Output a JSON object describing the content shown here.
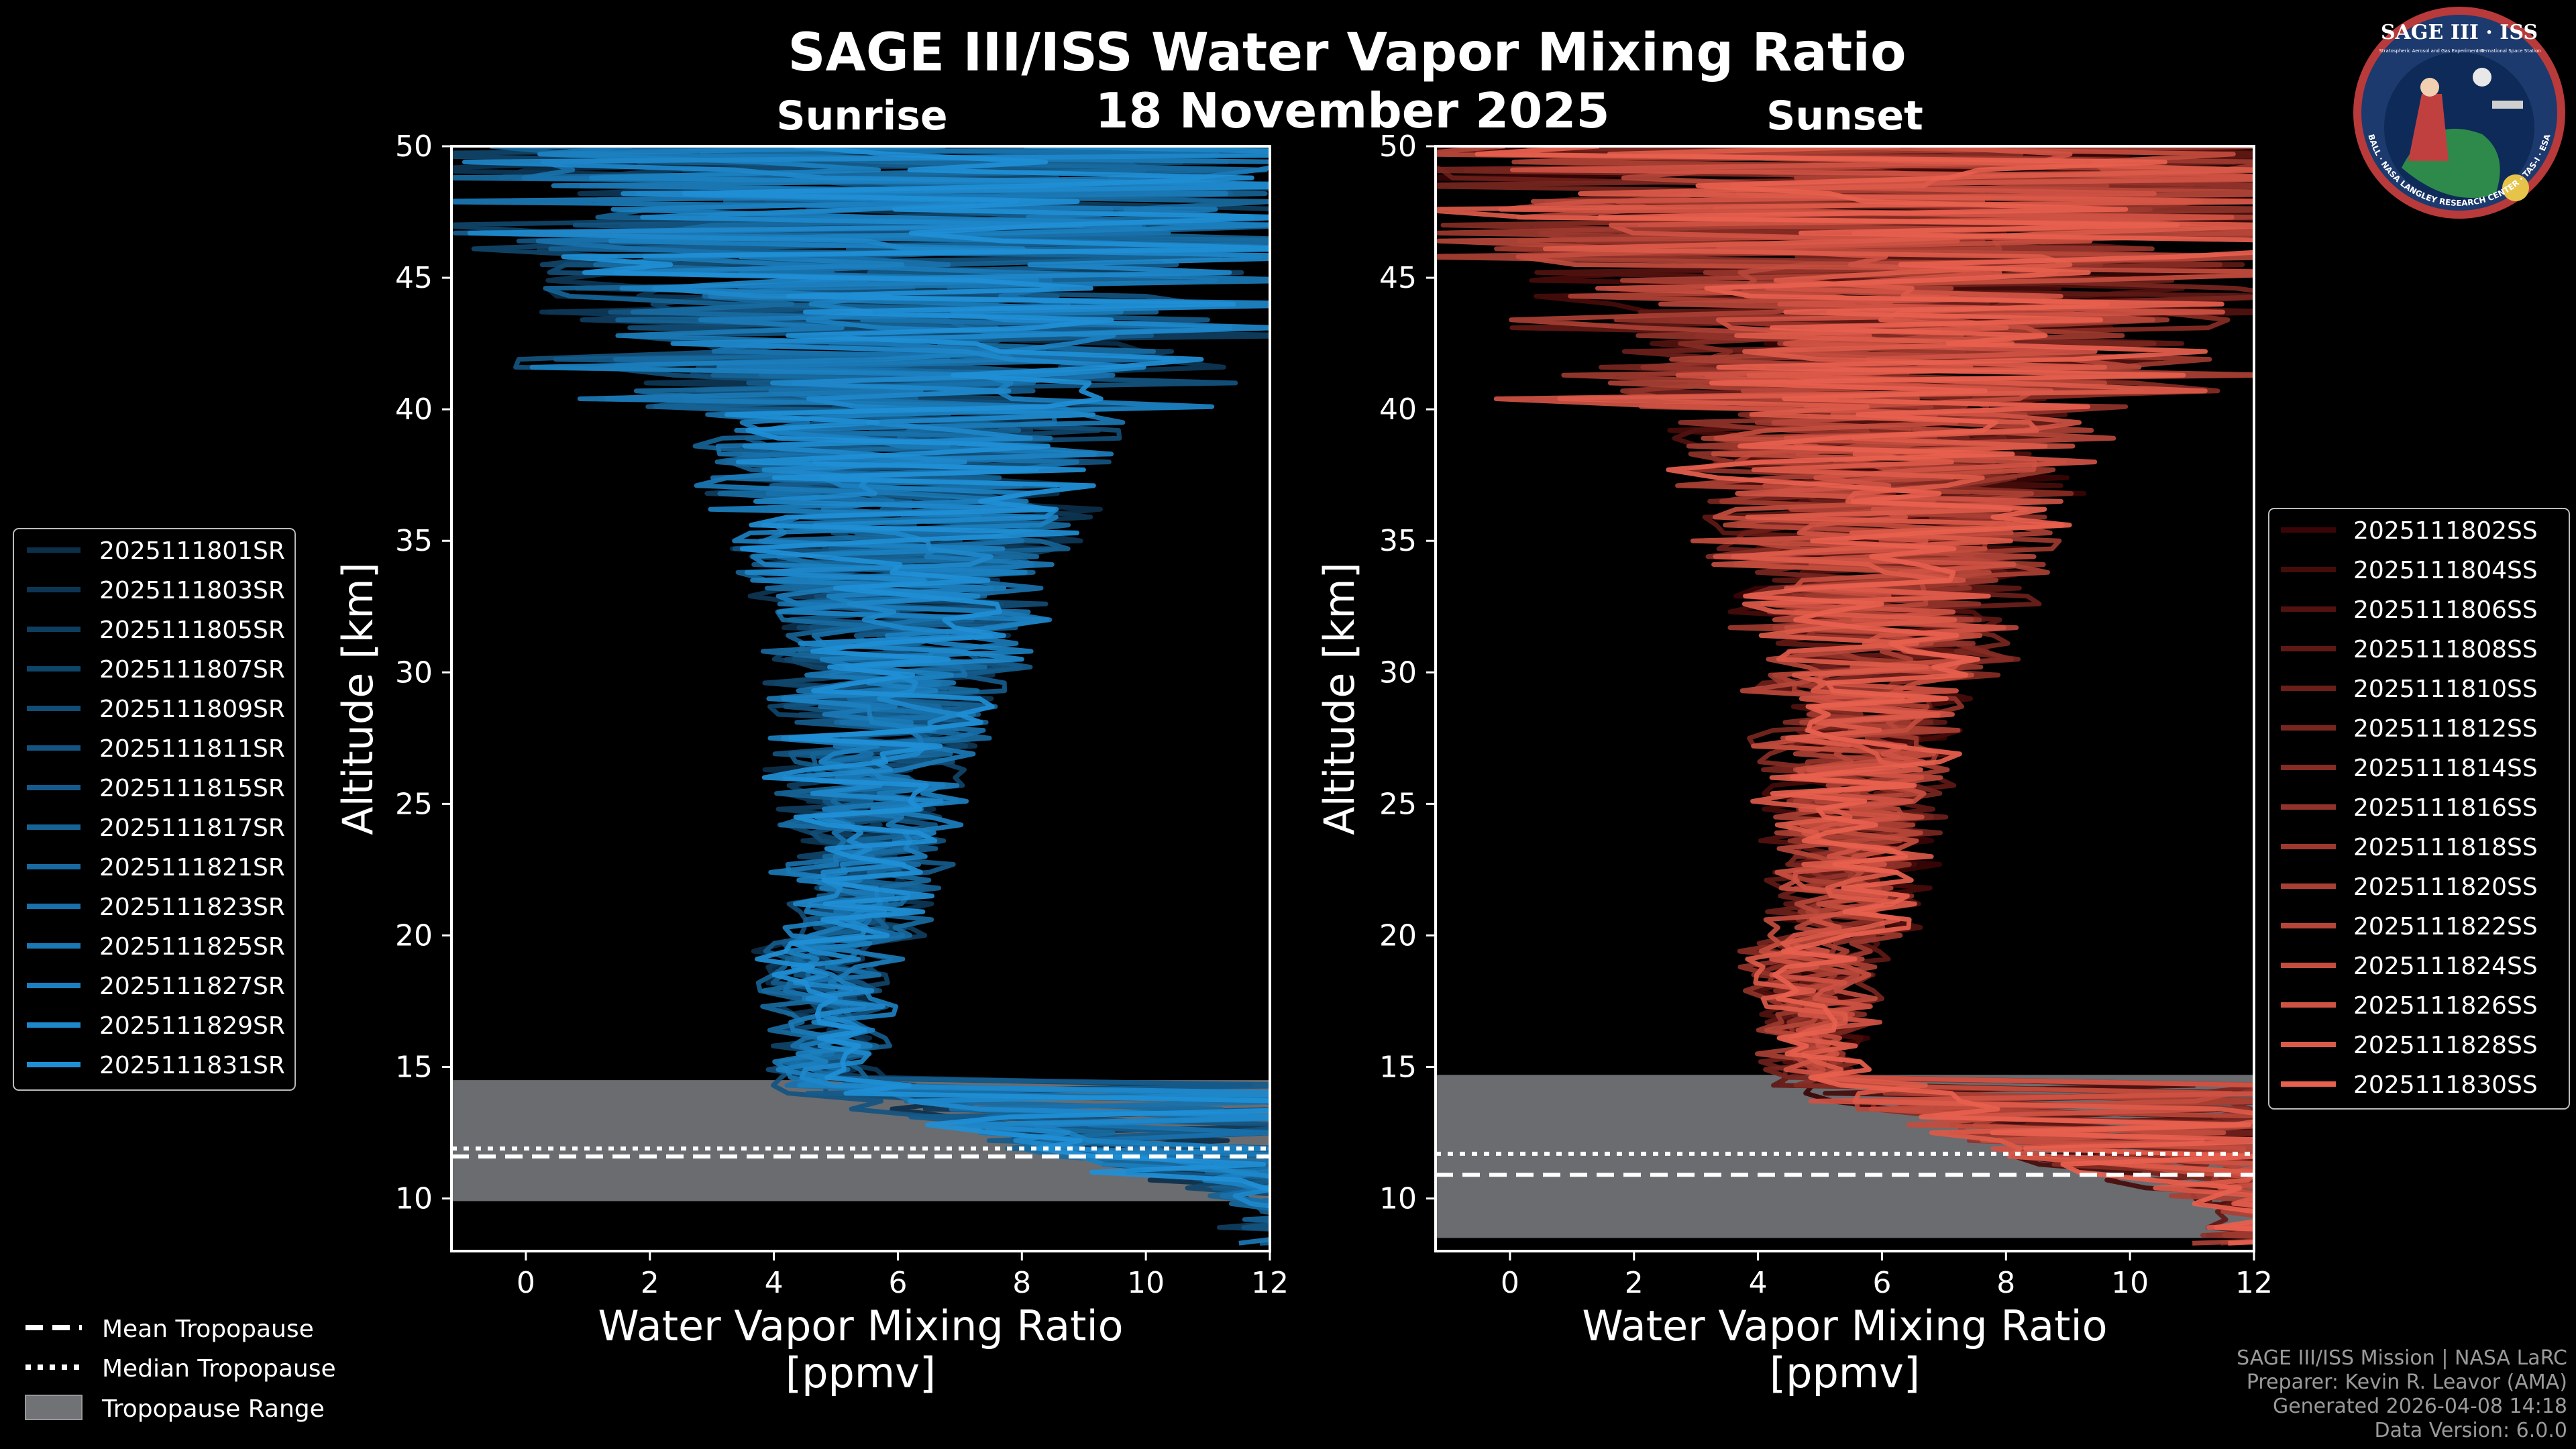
{
  "title": "SAGE III/ISS Water Vapor Mixing Ratio",
  "date": "18 November 2025",
  "logo": {
    "top_text": "SAGE III · ISS",
    "sub_text_left": "Stratospheric Aerosol and Gas Experiment III",
    "sub_text_right": "International Space Station",
    "ring_text": "BALL · NASA LANGLEY RESEARCH CENTER · TAS-I · ESA"
  },
  "legend_common": [
    {
      "label": "Mean Tropopause",
      "style": "dashed"
    },
    {
      "label": "Median Tropopause",
      "style": "dotted"
    },
    {
      "label": "Tropopause Range",
      "style": "patch"
    }
  ],
  "footer": [
    "SAGE III/ISS Mission | NASA LaRC",
    "Preparer: Kevin R. Leavor (AMA)",
    "Generated 2026-04-08 14:18",
    "Data Version: 6.0.0"
  ],
  "colors": {
    "sunrise": "#1f8fd6",
    "sunset": "#e8604e",
    "range": "#707276"
  },
  "chart_data": [
    {
      "type": "line",
      "panel": "sunrise",
      "subtitle": "Sunrise",
      "xlabel": "Water Vapor Mixing Ratio\n[ppmv]",
      "ylabel": "Altitude [km]",
      "xlim": [
        -1.2,
        12
      ],
      "ylim": [
        8,
        50
      ],
      "xticks": [
        0,
        2,
        4,
        6,
        8,
        10,
        12
      ],
      "yticks": [
        10,
        15,
        20,
        25,
        30,
        35,
        40,
        45,
        50
      ],
      "tropopause_range": [
        9.9,
        14.5
      ],
      "tropopause_mean": 11.6,
      "tropopause_median": 11.9,
      "series": [
        {
          "name": "2025111801SR"
        },
        {
          "name": "2025111803SR"
        },
        {
          "name": "2025111805SR"
        },
        {
          "name": "2025111807SR"
        },
        {
          "name": "2025111809SR"
        },
        {
          "name": "2025111811SR"
        },
        {
          "name": "2025111815SR"
        },
        {
          "name": "2025111817SR"
        },
        {
          "name": "2025111821SR"
        },
        {
          "name": "2025111823SR"
        },
        {
          "name": "2025111825SR"
        },
        {
          "name": "2025111827SR"
        },
        {
          "name": "2025111829SR"
        },
        {
          "name": "2025111831SR"
        }
      ]
    },
    {
      "type": "line",
      "panel": "sunset",
      "subtitle": "Sunset",
      "xlabel": "Water Vapor Mixing Ratio\n[ppmv]",
      "ylabel": "Altitude [km]",
      "xlim": [
        -1.2,
        12
      ],
      "ylim": [
        8,
        50
      ],
      "xticks": [
        0,
        2,
        4,
        6,
        8,
        10,
        12
      ],
      "yticks": [
        10,
        15,
        20,
        25,
        30,
        35,
        40,
        45,
        50
      ],
      "tropopause_range": [
        8.5,
        14.7
      ],
      "tropopause_mean": 10.9,
      "tropopause_median": 11.7,
      "series": [
        {
          "name": "2025111802SS"
        },
        {
          "name": "2025111804SS"
        },
        {
          "name": "2025111806SS"
        },
        {
          "name": "2025111808SS"
        },
        {
          "name": "2025111810SS"
        },
        {
          "name": "2025111812SS"
        },
        {
          "name": "2025111814SS"
        },
        {
          "name": "2025111816SS"
        },
        {
          "name": "2025111818SS"
        },
        {
          "name": "2025111820SS"
        },
        {
          "name": "2025111822SS"
        },
        {
          "name": "2025111824SS"
        },
        {
          "name": "2025111826SS"
        },
        {
          "name": "2025111828SS"
        },
        {
          "name": "2025111830SS"
        }
      ]
    }
  ]
}
